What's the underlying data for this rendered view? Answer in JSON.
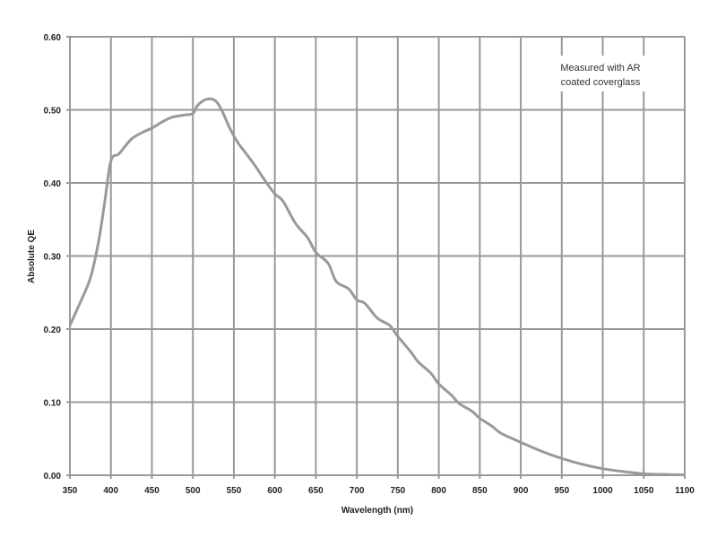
{
  "chart_data": {
    "type": "line",
    "title": "",
    "xlabel": "Wavelength (nm)",
    "ylabel": "Absolute QE",
    "xlim": [
      350,
      1100
    ],
    "ylim": [
      0,
      0.6
    ],
    "xticks": [
      "350",
      "400",
      "450",
      "500",
      "550",
      "600",
      "650",
      "700",
      "750",
      "800",
      "850",
      "900",
      "950",
      "1000",
      "1050",
      "1100"
    ],
    "yticks": [
      "0.00",
      "0.10",
      "0.20",
      "0.30",
      "0.40",
      "0.50",
      "0.60"
    ],
    "grid": true,
    "annotation": [
      "Measured with AR",
      "coated coverglass"
    ],
    "line_color": "#999999",
    "series": [
      {
        "name": "Absolute QE",
        "x": [
          350,
          360,
          375,
          385,
          392,
          400,
          410,
          425,
          440,
          450,
          465,
          475,
          490,
          500,
          505,
          512,
          520,
          528,
          535,
          545,
          555,
          565,
          575,
          590,
          600,
          610,
          625,
          640,
          650,
          665,
          675,
          690,
          700,
          710,
          725,
          740,
          750,
          765,
          775,
          790,
          800,
          815,
          825,
          840,
          850,
          865,
          875,
          890,
          900,
          925,
          950,
          975,
          1000,
          1025,
          1050,
          1075,
          1100
        ],
        "y": [
          0.205,
          0.23,
          0.27,
          0.32,
          0.37,
          0.43,
          0.44,
          0.46,
          0.47,
          0.475,
          0.485,
          0.49,
          0.493,
          0.495,
          0.505,
          0.512,
          0.515,
          0.512,
          0.5,
          0.475,
          0.455,
          0.44,
          0.425,
          0.4,
          0.385,
          0.375,
          0.345,
          0.325,
          0.305,
          0.29,
          0.265,
          0.255,
          0.24,
          0.235,
          0.215,
          0.205,
          0.19,
          0.17,
          0.155,
          0.14,
          0.125,
          0.11,
          0.098,
          0.088,
          0.078,
          0.067,
          0.058,
          0.05,
          0.045,
          0.033,
          0.023,
          0.015,
          0.009,
          0.005,
          0.002,
          0.001,
          0.0005
        ]
      }
    ]
  }
}
